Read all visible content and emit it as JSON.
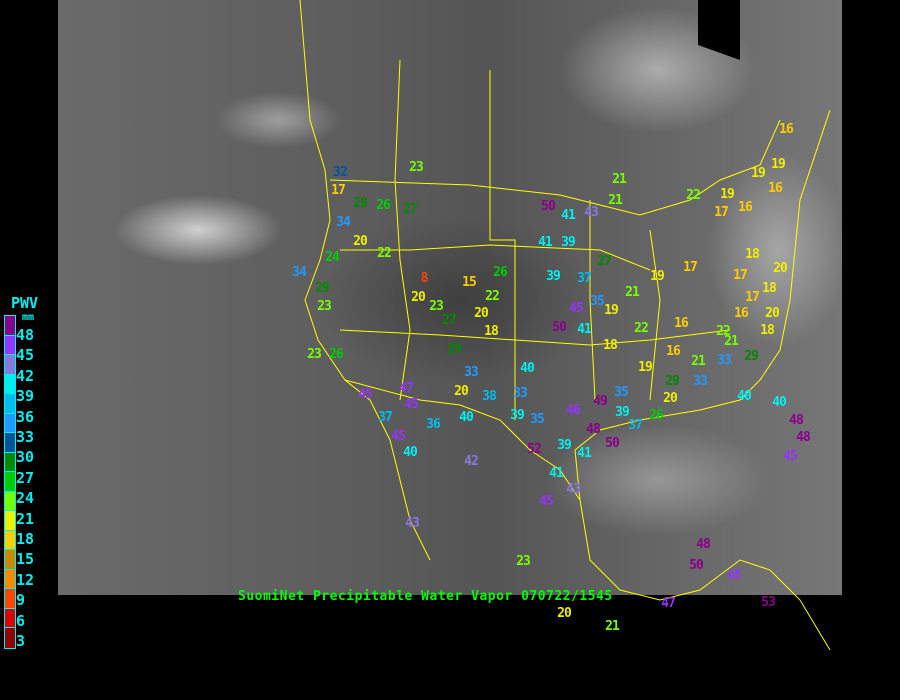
{
  "legend": {
    "title": "PWV",
    "unit": "mm",
    "ticks": [
      "48",
      "45",
      "42",
      "39",
      "36",
      "33",
      "30",
      "27",
      "24",
      "21",
      "18",
      "15",
      "12",
      "9",
      "6",
      "3"
    ],
    "colors": [
      "#8b008b",
      "#9933ff",
      "#8877dd",
      "#00eeee",
      "#00bbee",
      "#2299ff",
      "#005599",
      "#008800",
      "#00cc00",
      "#77ff00",
      "#eeee00",
      "#ffcc00",
      "#cc8800",
      "#ff8800",
      "#ff4400",
      "#dd0000",
      "#990000"
    ]
  },
  "caption": "SuomiNet Precipitable Water Vapor 070722/1545",
  "colors": {
    "border_lines": "#ffff00",
    "caption": "#00ff00",
    "legend_text": "#00eeee"
  },
  "stations": [
    "32",
    "17",
    "34",
    "29",
    "26",
    "27",
    "23",
    "20",
    "22",
    "24",
    "34",
    "29",
    "23",
    "23",
    "26",
    "20",
    "8",
    "15",
    "22",
    "20",
    "23",
    "27",
    "18",
    "29",
    "26",
    "20",
    "33",
    "38",
    "33",
    "39",
    "35",
    "40",
    "36",
    "45",
    "47",
    "45",
    "37",
    "40",
    "42",
    "52",
    "41",
    "45",
    "43",
    "39",
    "41",
    "46",
    "48",
    "50",
    "49",
    "35",
    "39",
    "37",
    "26",
    "20",
    "29",
    "16",
    "16",
    "21",
    "33",
    "22",
    "16",
    "18",
    "21",
    "29",
    "40",
    "33",
    "19",
    "22",
    "18",
    "19",
    "21",
    "35",
    "45",
    "50",
    "41",
    "39",
    "37",
    "27",
    "41",
    "39",
    "50",
    "41",
    "43",
    "21",
    "21",
    "22",
    "19",
    "17",
    "16",
    "19",
    "17",
    "17",
    "17",
    "18",
    "20",
    "18",
    "16",
    "19",
    "19",
    "16",
    "20",
    "40",
    "48",
    "48",
    "45",
    "48",
    "50",
    "45",
    "53",
    "47",
    "21",
    "23",
    "20",
    "43",
    "45",
    "40"
  ]
}
